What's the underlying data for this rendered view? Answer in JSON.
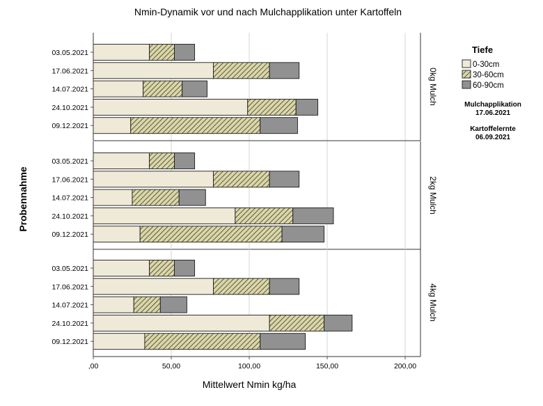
{
  "chart_data": {
    "type": "bar",
    "orientation": "horizontal",
    "stacked": true,
    "title": "Nmin-Dynamik vor und nach Mulchapplikation unter Kartoffeln",
    "xlabel": "Mittelwert Nmin kg/ha",
    "ylabel": "Probennahme",
    "xlim": [
      0,
      200
    ],
    "xticks": [
      0,
      50,
      100,
      150,
      200
    ],
    "xtick_labels": [
      ",00",
      "50,00",
      "100,00",
      "150,00",
      "200,00"
    ],
    "grid": "vertical",
    "categories": [
      "03.05.2021",
      "17.06.2021",
      "14.07.2021",
      "24.10.2021",
      "09.12.2021"
    ],
    "legend": {
      "title": "Tiefe",
      "position": "right",
      "entries": [
        "0-30cm",
        "30-60cm",
        "60-90cm"
      ]
    },
    "series_styles": [
      {
        "name": "0-30cm",
        "fill": "#efe9d8",
        "pattern": "none"
      },
      {
        "name": "30-60cm",
        "fill": "#d8d3a6",
        "pattern": "diagonal-hatch"
      },
      {
        "name": "60-90cm",
        "fill": "#919191",
        "pattern": "none"
      }
    ],
    "panels": [
      {
        "label": "0kg Mulch",
        "series": [
          {
            "name": "0-30cm",
            "values": [
              36,
              77,
              32,
              99,
              24
            ]
          },
          {
            "name": "30-60cm",
            "values": [
              16,
              36,
              25,
              31,
              83
            ]
          },
          {
            "name": "60-90cm",
            "values": [
              13,
              19,
              16,
              14,
              24
            ]
          }
        ]
      },
      {
        "label": "2kg Mulch",
        "series": [
          {
            "name": "0-30cm",
            "values": [
              36,
              77,
              25,
              91,
              30
            ]
          },
          {
            "name": "30-60cm",
            "values": [
              16,
              36,
              30,
              37,
              91
            ]
          },
          {
            "name": "60-90cm",
            "values": [
              13,
              19,
              17,
              26,
              27
            ]
          }
        ]
      },
      {
        "label": "4kg Mulch",
        "series": [
          {
            "name": "0-30cm",
            "values": [
              36,
              77,
              26,
              113,
              33
            ]
          },
          {
            "name": "30-60cm",
            "values": [
              16,
              36,
              17,
              35,
              74
            ]
          },
          {
            "name": "60-90cm",
            "values": [
              13,
              19,
              17,
              18,
              29
            ]
          }
        ]
      }
    ],
    "annotations": [
      {
        "line1": "Mulchapplikation",
        "line2": "17.06.2021"
      },
      {
        "line1": "Kartoffelernte",
        "line2": "06.09.2021"
      }
    ]
  }
}
